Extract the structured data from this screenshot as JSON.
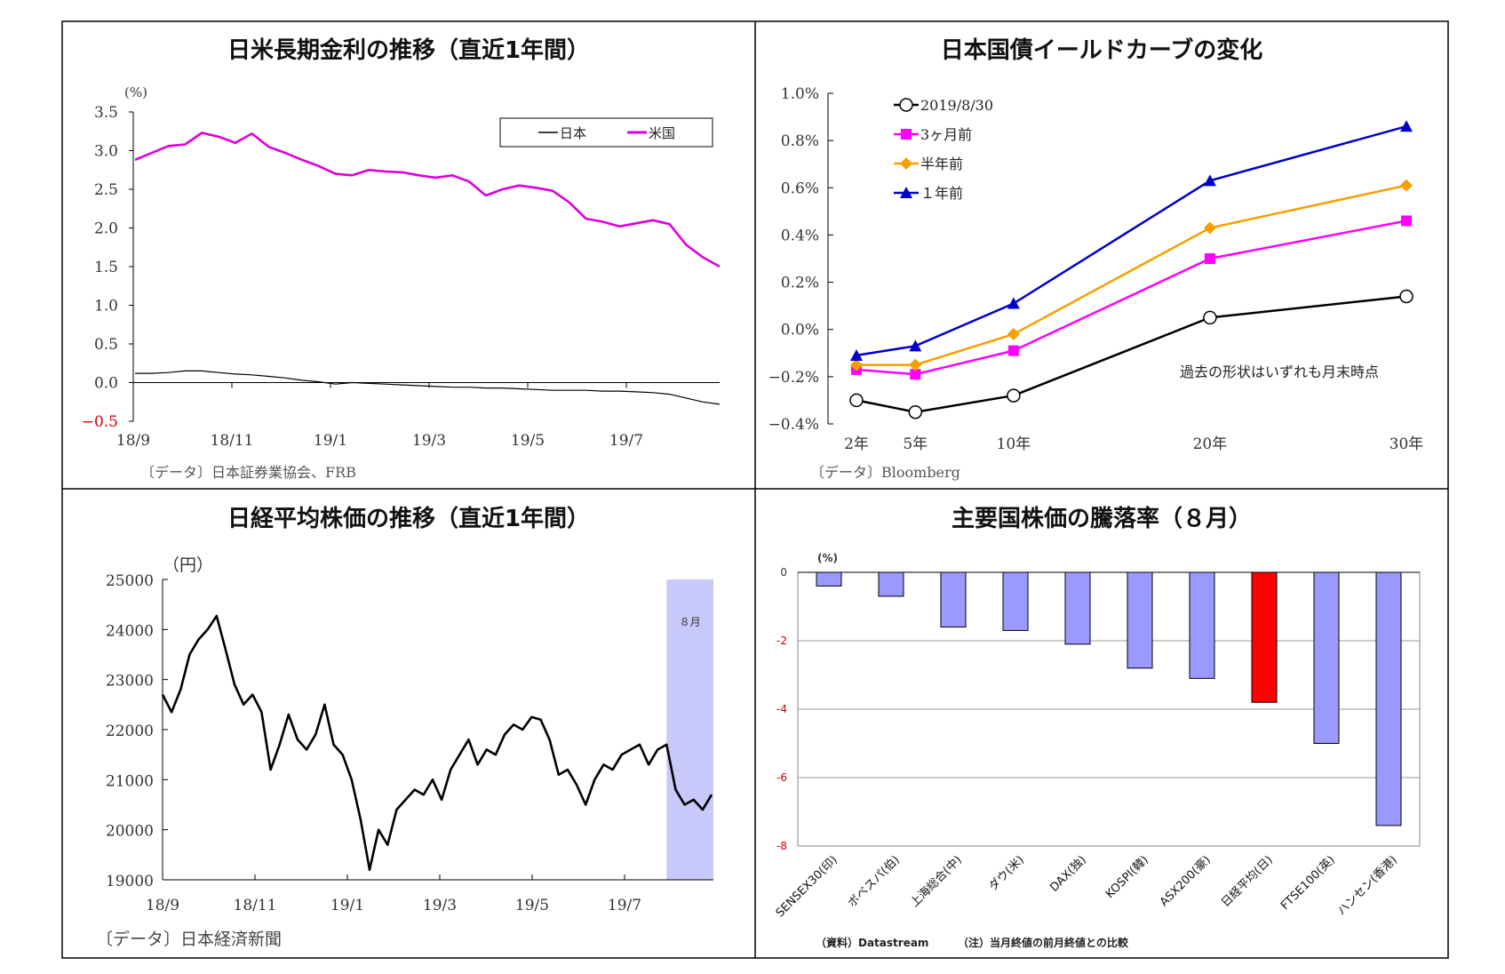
{
  "chart_data": [
    {
      "type": "line",
      "title": "日米長期金利の推移（直近1年間）",
      "unit": "(%)",
      "ylim": [
        -0.5,
        3.5
      ],
      "yticks": [
        "3.5",
        "3.0",
        "2.5",
        "2.0",
        "1.5",
        "1.0",
        "0.5",
        "0.0",
        "−0.5"
      ],
      "xticks": [
        "18/9",
        "18/11",
        "19/1",
        "19/3",
        "19/5",
        "19/7"
      ],
      "legend_position": "top-right",
      "source": "〔データ〕日本証券業協会、FRB",
      "series": [
        {
          "name": "日本",
          "color": "#000000",
          "values": [
            0.12,
            0.12,
            0.13,
            0.15,
            0.15,
            0.13,
            0.11,
            0.1,
            0.08,
            0.06,
            0.03,
            0.01,
            -0.02,
            0.0,
            -0.01,
            -0.02,
            -0.03,
            -0.04,
            -0.05,
            -0.06,
            -0.06,
            -0.07,
            -0.07,
            -0.08,
            -0.09,
            -0.1,
            -0.1,
            -0.1,
            -0.11,
            -0.11,
            -0.12,
            -0.13,
            -0.15,
            -0.2,
            -0.25,
            -0.28
          ]
        },
        {
          "name": "米国",
          "color": "#dd00dd",
          "values": [
            2.88,
            2.97,
            3.06,
            3.08,
            3.23,
            3.18,
            3.1,
            3.22,
            3.05,
            2.97,
            2.88,
            2.8,
            2.7,
            2.68,
            2.75,
            2.73,
            2.72,
            2.68,
            2.65,
            2.68,
            2.6,
            2.42,
            2.5,
            2.55,
            2.52,
            2.48,
            2.33,
            2.12,
            2.08,
            2.02,
            2.06,
            2.1,
            2.05,
            1.78,
            1.62,
            1.5
          ]
        }
      ]
    },
    {
      "type": "line",
      "title": "日本国債イールドカーブの変化",
      "ylim": [
        -0.4,
        1.0
      ],
      "yticks": [
        "1.0%",
        "0.8%",
        "0.6%",
        "0.4%",
        "0.2%",
        "0.0%",
        "−0.2%",
        "−0.4%"
      ],
      "categories": [
        "2年",
        "5年",
        "10年",
        "20年",
        "30年"
      ],
      "x": [
        2,
        5,
        10,
        20,
        30
      ],
      "legend_position": "top-left",
      "note": "過去の形状はいずれも月末時点",
      "source": "〔データ〕Bloomberg",
      "series": [
        {
          "name": "2019/8/30",
          "color": "#000000",
          "marker": "circle",
          "values": [
            -0.3,
            -0.35,
            -0.28,
            0.05,
            0.14
          ]
        },
        {
          "name": "3ヶ月前",
          "color": "#ff00ff",
          "marker": "square",
          "values": [
            -0.17,
            -0.19,
            -0.09,
            0.3,
            0.46
          ]
        },
        {
          "name": "半年前",
          "color": "#f5a000",
          "marker": "diamond",
          "values": [
            -0.15,
            -0.15,
            -0.02,
            0.43,
            0.61
          ]
        },
        {
          "name": "１年前",
          "color": "#0000cc",
          "marker": "triangle",
          "values": [
            -0.11,
            -0.07,
            0.11,
            0.63,
            0.86
          ]
        }
      ]
    },
    {
      "type": "line",
      "title": "日経平均株価の推移（直近1年間）",
      "unit": "（円）",
      "ylim": [
        19000,
        25000
      ],
      "yticks": [
        "25000",
        "24000",
        "23000",
        "22000",
        "21000",
        "20000",
        "19000"
      ],
      "xticks": [
        "18/9",
        "18/11",
        "19/1",
        "19/3",
        "19/5",
        "19/7"
      ],
      "highlight_label": "８月",
      "highlight_start_fraction": 0.915,
      "source": "〔データ〕日本経済新聞",
      "series": [
        {
          "name": "日経平均",
          "color": "#000000",
          "values": [
            22700,
            22350,
            22800,
            23500,
            23800,
            24000,
            24270,
            23600,
            22900,
            22500,
            22700,
            22350,
            21200,
            21700,
            22300,
            21800,
            21600,
            21900,
            22500,
            21700,
            21500,
            21000,
            20200,
            19200,
            20000,
            19700,
            20400,
            20600,
            20800,
            20700,
            21000,
            20600,
            21200,
            21500,
            21800,
            21300,
            21600,
            21500,
            21900,
            22100,
            22000,
            22250,
            22200,
            21800,
            21100,
            21200,
            20900,
            20500,
            21000,
            21300,
            21200,
            21500,
            21600,
            21700,
            21300,
            21600,
            21700,
            20800,
            20500,
            20600,
            20400,
            20700
          ]
        }
      ]
    },
    {
      "type": "bar",
      "title": "主要国株価の騰落率（８月）",
      "unit": "(%)",
      "ylim": [
        -8,
        0
      ],
      "yticks": [
        "0",
        "-2",
        "-4",
        "-6",
        "-8"
      ],
      "categories": [
        "SENSEX30(印)",
        "ボベスパ(伯)",
        "上海総合(中)",
        "ダウ(米)",
        "DAX(独)",
        "KOSPI(韓)",
        "ASX200(豪)",
        "日経平均(日)",
        "FTSE100(英)",
        "ハンセン(香港)"
      ],
      "values": [
        -0.4,
        -0.7,
        -1.6,
        -1.7,
        -2.1,
        -2.8,
        -3.1,
        -3.8,
        -5.0,
        -7.4
      ],
      "colors": {
        "default": "#9999ff",
        "highlight": "#ff0000",
        "highlight_category": "日経平均(日)"
      },
      "source": "（資料）Datastream",
      "note": "（注）当月終値の前月終値との比較"
    }
  ]
}
